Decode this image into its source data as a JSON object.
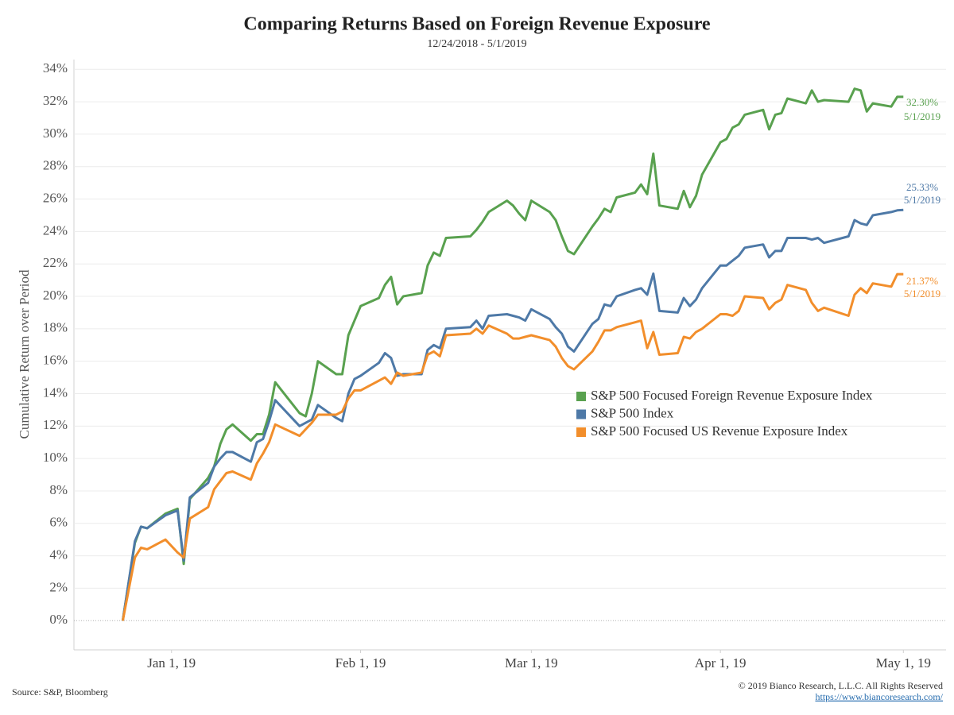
{
  "chart_data": {
    "type": "line",
    "title": "Comparing Returns Based on Foreign Revenue Exposure",
    "subtitle": "12/24/2018 - 5/1/2019",
    "y_label": "Cumulative Return over Period",
    "x": [
      "2018-12-24",
      "2018-12-26",
      "2018-12-27",
      "2018-12-28",
      "2018-12-31",
      "2019-01-02",
      "2019-01-03",
      "2019-01-04",
      "2019-01-07",
      "2019-01-08",
      "2019-01-09",
      "2019-01-10",
      "2019-01-11",
      "2019-01-14",
      "2019-01-15",
      "2019-01-16",
      "2019-01-17",
      "2019-01-18",
      "2019-01-22",
      "2019-01-23",
      "2019-01-24",
      "2019-01-25",
      "2019-01-28",
      "2019-01-29",
      "2019-01-30",
      "2019-01-31",
      "2019-02-01",
      "2019-02-04",
      "2019-02-05",
      "2019-02-06",
      "2019-02-07",
      "2019-02-08",
      "2019-02-11",
      "2019-02-12",
      "2019-02-13",
      "2019-02-14",
      "2019-02-15",
      "2019-02-19",
      "2019-02-20",
      "2019-02-21",
      "2019-02-22",
      "2019-02-25",
      "2019-02-26",
      "2019-02-27",
      "2019-02-28",
      "2019-03-01",
      "2019-03-04",
      "2019-03-05",
      "2019-03-06",
      "2019-03-07",
      "2019-03-08",
      "2019-03-11",
      "2019-03-12",
      "2019-03-13",
      "2019-03-14",
      "2019-03-15",
      "2019-03-18",
      "2019-03-19",
      "2019-03-20",
      "2019-03-21",
      "2019-03-22",
      "2019-03-25",
      "2019-03-26",
      "2019-03-27",
      "2019-03-28",
      "2019-03-29",
      "2019-04-01",
      "2019-04-02",
      "2019-04-03",
      "2019-04-04",
      "2019-04-05",
      "2019-04-08",
      "2019-04-09",
      "2019-04-10",
      "2019-04-11",
      "2019-04-12",
      "2019-04-15",
      "2019-04-16",
      "2019-04-17",
      "2019-04-18",
      "2019-04-22",
      "2019-04-23",
      "2019-04-24",
      "2019-04-25",
      "2019-04-26",
      "2019-04-29",
      "2019-04-30",
      "2019-05-01"
    ],
    "series": [
      {
        "name": "S&P 500 Focused Foreign Revenue Exposure Index",
        "color": "#59a14f",
        "annotation": "5/1/2019",
        "values": [
          0,
          4.8,
          5.8,
          5.7,
          6.6,
          6.9,
          3.5,
          7.5,
          8.8,
          9.5,
          10.9,
          11.8,
          12.1,
          11.1,
          11.5,
          11.5,
          12.7,
          14.7,
          12.8,
          12.6,
          14.0,
          16.0,
          15.2,
          15.2,
          17.6,
          18.5,
          19.4,
          19.9,
          20.7,
          21.2,
          19.5,
          20.0,
          20.2,
          21.9,
          22.7,
          22.5,
          23.6,
          23.7,
          24.1,
          24.6,
          25.2,
          25.9,
          25.6,
          25.1,
          24.7,
          25.9,
          25.2,
          24.7,
          23.7,
          22.8,
          22.6,
          24.3,
          24.8,
          25.4,
          25.2,
          26.1,
          26.4,
          26.9,
          26.3,
          28.8,
          25.6,
          25.4,
          26.5,
          25.5,
          26.2,
          27.5,
          29.5,
          29.7,
          30.4,
          30.6,
          31.2,
          31.5,
          30.3,
          31.2,
          31.3,
          32.2,
          31.9,
          32.7,
          32.0,
          32.1,
          32.0,
          32.8,
          32.7,
          31.4,
          31.9,
          31.7,
          32.3,
          32.3
        ],
        "value_labels": [
          null,
          null,
          null,
          null,
          null,
          null,
          null,
          null,
          null,
          null,
          null,
          null,
          null,
          null,
          null,
          null,
          null,
          null,
          null,
          null,
          null,
          null,
          null,
          null,
          null,
          null,
          null,
          null,
          null,
          null,
          null,
          null,
          null,
          null,
          null,
          null,
          null,
          null,
          null,
          null,
          null,
          null,
          null,
          null,
          null,
          null,
          null,
          null,
          null,
          null,
          null,
          null,
          null,
          null,
          null,
          null,
          null,
          null,
          null,
          null,
          null,
          null,
          null,
          null,
          null,
          null,
          null,
          null,
          null,
          null,
          null,
          null,
          null,
          null,
          null,
          null,
          null,
          null,
          null,
          null,
          null,
          null,
          null,
          null,
          null,
          null,
          null,
          "32.30%"
        ]
      },
      {
        "name": "S&P 500 Index",
        "color": "#4e79a7",
        "annotation": "5/1/2019",
        "values": [
          0,
          4.9,
          5.8,
          5.7,
          6.5,
          6.8,
          3.7,
          7.6,
          8.5,
          9.5,
          10.0,
          10.4,
          10.4,
          9.8,
          11.0,
          11.2,
          12.3,
          13.6,
          12.0,
          12.2,
          12.4,
          13.3,
          12.5,
          12.3,
          14.0,
          14.9,
          15.1,
          15.9,
          16.5,
          16.2,
          15.1,
          15.2,
          15.2,
          16.7,
          17.0,
          16.8,
          18.0,
          18.1,
          18.5,
          18.0,
          18.8,
          18.9,
          18.8,
          18.7,
          18.5,
          19.2,
          18.6,
          18.1,
          17.7,
          16.9,
          16.6,
          18.3,
          18.6,
          19.5,
          19.4,
          20.0,
          20.4,
          20.5,
          20.1,
          21.4,
          19.1,
          19.0,
          19.9,
          19.4,
          19.8,
          20.5,
          21.9,
          21.9,
          22.2,
          22.5,
          23.0,
          23.2,
          22.4,
          22.8,
          22.8,
          23.6,
          23.6,
          23.5,
          23.6,
          23.3,
          23.7,
          24.7,
          24.5,
          24.4,
          25.0,
          25.2,
          25.3,
          25.33
        ],
        "value_labels": [
          null,
          null,
          null,
          null,
          null,
          null,
          null,
          null,
          null,
          null,
          null,
          null,
          null,
          null,
          null,
          null,
          null,
          null,
          null,
          null,
          null,
          null,
          null,
          null,
          null,
          null,
          null,
          null,
          null,
          null,
          null,
          null,
          null,
          null,
          null,
          null,
          null,
          null,
          null,
          null,
          null,
          null,
          null,
          null,
          null,
          null,
          null,
          null,
          null,
          null,
          null,
          null,
          null,
          null,
          null,
          null,
          null,
          null,
          null,
          null,
          null,
          null,
          null,
          null,
          null,
          null,
          null,
          null,
          null,
          null,
          null,
          null,
          null,
          null,
          null,
          null,
          null,
          null,
          null,
          null,
          null,
          null,
          null,
          null,
          null,
          null,
          null,
          "25.33%"
        ]
      },
      {
        "name": "S&P 500 Focused US Revenue Exposure Index",
        "color": "#f28e2b",
        "annotation": "5/1/2019",
        "values": [
          0,
          3.9,
          4.5,
          4.4,
          5.0,
          4.2,
          3.9,
          6.3,
          7.0,
          8.1,
          8.6,
          9.1,
          9.2,
          8.7,
          9.7,
          10.3,
          11.0,
          12.1,
          11.4,
          11.8,
          12.2,
          12.7,
          12.7,
          12.9,
          13.7,
          14.2,
          14.2,
          14.8,
          15.0,
          14.6,
          15.3,
          15.1,
          15.3,
          16.4,
          16.6,
          16.3,
          17.6,
          17.7,
          18.0,
          17.7,
          18.2,
          17.7,
          17.4,
          17.4,
          17.5,
          17.6,
          17.3,
          16.9,
          16.2,
          15.7,
          15.5,
          16.6,
          17.2,
          17.9,
          17.9,
          18.1,
          18.4,
          18.5,
          16.8,
          17.8,
          16.4,
          16.5,
          17.5,
          17.4,
          17.8,
          18.0,
          18.9,
          18.9,
          18.8,
          19.1,
          20.0,
          19.9,
          19.2,
          19.6,
          19.8,
          20.7,
          20.4,
          19.6,
          19.1,
          19.3,
          18.8,
          20.1,
          20.5,
          20.2,
          20.8,
          20.6,
          21.37,
          21.37
        ],
        "value_labels": [
          null,
          null,
          null,
          null,
          null,
          null,
          null,
          null,
          null,
          null,
          null,
          null,
          null,
          null,
          null,
          null,
          null,
          null,
          null,
          null,
          null,
          null,
          null,
          null,
          null,
          null,
          null,
          null,
          null,
          null,
          null,
          null,
          null,
          null,
          null,
          null,
          null,
          null,
          null,
          null,
          null,
          null,
          null,
          null,
          null,
          null,
          null,
          null,
          null,
          null,
          null,
          null,
          null,
          null,
          null,
          null,
          null,
          null,
          null,
          null,
          null,
          null,
          null,
          null,
          null,
          null,
          null,
          null,
          null,
          null,
          null,
          null,
          null,
          null,
          null,
          null,
          null,
          null,
          null,
          null,
          null,
          null,
          null,
          null,
          null,
          null,
          null,
          "21.37%"
        ]
      }
    ],
    "xlim": [
      "2018-12-16",
      "2019-05-08"
    ],
    "xticks": [
      {
        "value": "2019-01-01",
        "label": "Jan 1, 19"
      },
      {
        "value": "2019-02-01",
        "label": "Feb 1, 19"
      },
      {
        "value": "2019-03-01",
        "label": "Mar 1, 19"
      },
      {
        "value": "2019-04-01",
        "label": "Apr 1, 19"
      },
      {
        "value": "2019-05-01",
        "label": "May 1, 19"
      }
    ],
    "ylim": [
      -1.8,
      34.6
    ],
    "yticks": [
      {
        "value": 0,
        "label": "0%"
      },
      {
        "value": 2,
        "label": "2%"
      },
      {
        "value": 4,
        "label": "4%"
      },
      {
        "value": 6,
        "label": "6%"
      },
      {
        "value": 8,
        "label": "8%"
      },
      {
        "value": 10,
        "label": "10%"
      },
      {
        "value": 12,
        "label": "12%"
      },
      {
        "value": 14,
        "label": "14%"
      },
      {
        "value": 16,
        "label": "16%"
      },
      {
        "value": 18,
        "label": "18%"
      },
      {
        "value": 20,
        "label": "20%"
      },
      {
        "value": 22,
        "label": "22%"
      },
      {
        "value": 24,
        "label": "24%"
      },
      {
        "value": 26,
        "label": "26%"
      },
      {
        "value": 28,
        "label": "28%"
      },
      {
        "value": 30,
        "label": "30%"
      },
      {
        "value": 32,
        "label": "32%"
      },
      {
        "value": 34,
        "label": "34%"
      }
    ],
    "grid": true,
    "legend": "right"
  },
  "footer": {
    "source": "Source: S&P, Bloomberg",
    "copyright": "© 2019 Bianco Research, L.L.C. All Rights Reserved",
    "url": "https://www.biancoresearch.com/"
  }
}
